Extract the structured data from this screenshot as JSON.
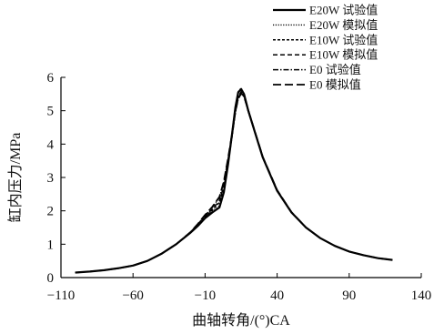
{
  "chart_data": {
    "type": "line",
    "title": "",
    "xlabel": "曲轴转角/(°)CA",
    "ylabel": "缸内压力/MPa",
    "xlim": [
      -110,
      140
    ],
    "ylim": [
      0,
      6
    ],
    "xticks": [
      "−110",
      "−60",
      "−10",
      "40",
      "90",
      "140"
    ],
    "xtick_values": [
      -110,
      -60,
      -10,
      40,
      90,
      140
    ],
    "yticks": [
      "0",
      "1",
      "2",
      "3",
      "4",
      "5",
      "6"
    ],
    "ytick_values": [
      0,
      1,
      2,
      3,
      4,
      5,
      6
    ],
    "grid": false,
    "legend_position": "top-right",
    "series": [
      {
        "name": "E20W 试验值",
        "dash": "solid",
        "color": "#000000",
        "x": [
          -100,
          -90,
          -80,
          -70,
          -60,
          -50,
          -40,
          -30,
          -20,
          -15,
          -10,
          -5,
          0,
          3,
          6,
          9,
          11,
          13,
          15,
          17,
          20,
          25,
          30,
          40,
          50,
          60,
          70,
          80,
          90,
          100,
          110,
          120
        ],
        "y": [
          0.15,
          0.18,
          0.22,
          0.28,
          0.36,
          0.5,
          0.72,
          1.0,
          1.35,
          1.55,
          1.78,
          1.95,
          2.1,
          2.55,
          3.4,
          4.4,
          5.1,
          5.55,
          5.65,
          5.5,
          5.0,
          4.3,
          3.6,
          2.6,
          1.95,
          1.5,
          1.18,
          0.95,
          0.78,
          0.67,
          0.58,
          0.53
        ]
      },
      {
        "name": "E20W 模拟值",
        "dash": "dot",
        "color": "#000000",
        "x": [
          -100,
          -90,
          -80,
          -70,
          -60,
          -50,
          -40,
          -30,
          -20,
          -15,
          -10,
          -5,
          0,
          3,
          6,
          9,
          11,
          13,
          15,
          17,
          20,
          25,
          30,
          40,
          50,
          60,
          70,
          80,
          90,
          100,
          110,
          120
        ],
        "y": [
          0.15,
          0.18,
          0.22,
          0.28,
          0.36,
          0.5,
          0.72,
          1.0,
          1.36,
          1.57,
          1.8,
          1.98,
          2.15,
          2.6,
          3.45,
          4.45,
          5.12,
          5.57,
          5.68,
          5.5,
          5.02,
          4.32,
          3.62,
          2.62,
          1.96,
          1.5,
          1.18,
          0.95,
          0.78,
          0.67,
          0.58,
          0.53
        ]
      },
      {
        "name": "E10W 试验值",
        "dash": "short-dash",
        "color": "#000000",
        "x": [
          -100,
          -90,
          -80,
          -70,
          -60,
          -50,
          -40,
          -30,
          -20,
          -15,
          -10,
          -5,
          0,
          3,
          6,
          9,
          11,
          13,
          15,
          17,
          20,
          25,
          30,
          40,
          50,
          60,
          70,
          80,
          90,
          100,
          110,
          120
        ],
        "y": [
          0.15,
          0.18,
          0.22,
          0.28,
          0.36,
          0.5,
          0.72,
          1.0,
          1.36,
          1.58,
          1.82,
          2.02,
          2.25,
          2.7,
          3.45,
          4.3,
          4.95,
          5.4,
          5.55,
          5.45,
          5.0,
          4.3,
          3.6,
          2.6,
          1.95,
          1.5,
          1.18,
          0.95,
          0.78,
          0.67,
          0.58,
          0.53
        ]
      },
      {
        "name": "E10W 模拟值",
        "dash": "dash",
        "color": "#000000",
        "x": [
          -100,
          -90,
          -80,
          -70,
          -60,
          -50,
          -40,
          -30,
          -20,
          -15,
          -10,
          -5,
          0,
          3,
          6,
          9,
          11,
          13,
          15,
          17,
          20,
          25,
          30,
          40,
          50,
          60,
          70,
          80,
          90,
          100,
          110,
          120
        ],
        "y": [
          0.15,
          0.18,
          0.22,
          0.28,
          0.36,
          0.5,
          0.72,
          1.0,
          1.36,
          1.58,
          1.83,
          2.05,
          2.3,
          2.75,
          3.5,
          4.35,
          5.0,
          5.42,
          5.57,
          5.47,
          5.02,
          4.32,
          3.62,
          2.62,
          1.96,
          1.5,
          1.18,
          0.95,
          0.78,
          0.67,
          0.58,
          0.53
        ]
      },
      {
        "name": "E0 试验值",
        "dash": "dash-dot",
        "color": "#000000",
        "x": [
          -100,
          -90,
          -80,
          -70,
          -60,
          -50,
          -40,
          -30,
          -20,
          -15,
          -10,
          -5,
          0,
          3,
          6,
          9,
          11,
          13,
          15,
          17,
          20,
          25,
          30,
          40,
          50,
          60,
          70,
          80,
          90,
          100,
          110,
          120
        ],
        "y": [
          0.15,
          0.18,
          0.22,
          0.28,
          0.36,
          0.5,
          0.72,
          1.0,
          1.37,
          1.6,
          1.86,
          2.1,
          2.4,
          2.85,
          3.55,
          4.35,
          4.95,
          5.35,
          5.5,
          5.42,
          4.98,
          4.3,
          3.6,
          2.6,
          1.95,
          1.5,
          1.18,
          0.95,
          0.78,
          0.67,
          0.58,
          0.53
        ]
      },
      {
        "name": "E0 模拟值",
        "dash": "long-dash",
        "color": "#000000",
        "x": [
          -100,
          -90,
          -80,
          -70,
          -60,
          -50,
          -40,
          -30,
          -20,
          -15,
          -10,
          -5,
          0,
          3,
          6,
          9,
          11,
          13,
          15,
          17,
          20,
          25,
          30,
          40,
          50,
          60,
          70,
          80,
          90,
          100,
          110,
          120
        ],
        "y": [
          0.15,
          0.18,
          0.22,
          0.28,
          0.36,
          0.5,
          0.72,
          1.0,
          1.37,
          1.61,
          1.88,
          2.12,
          2.42,
          2.88,
          3.58,
          4.38,
          4.98,
          5.37,
          5.52,
          5.44,
          5.0,
          4.32,
          3.62,
          2.62,
          1.96,
          1.5,
          1.18,
          0.95,
          0.78,
          0.67,
          0.58,
          0.53
        ]
      }
    ]
  }
}
